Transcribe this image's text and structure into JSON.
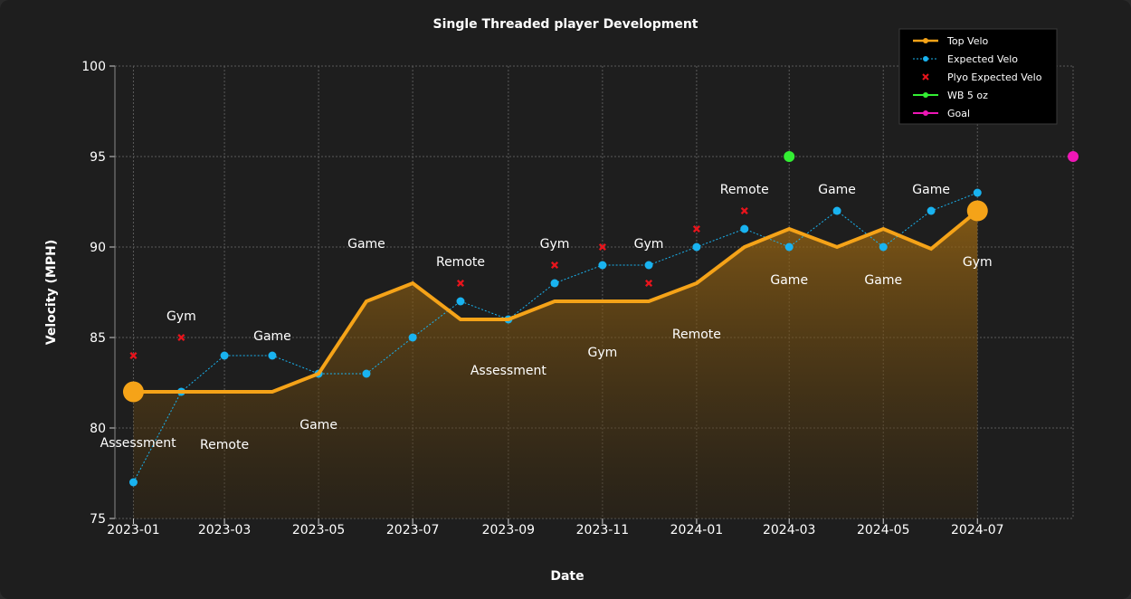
{
  "chart_data": {
    "type": "line",
    "title": "Single Threaded player Development",
    "xlabel": "Date",
    "ylabel": "Velocity (MPH)",
    "ylim": [
      75,
      100
    ],
    "xlim": [
      "2022-12-20",
      "2024-09-01"
    ],
    "y_ticks": [
      75,
      80,
      85,
      90,
      95,
      100
    ],
    "x_ticks": [
      {
        "date": "2023-01-01",
        "label": "2023-01"
      },
      {
        "date": "2023-03-01",
        "label": "2023-03"
      },
      {
        "date": "2023-05-01",
        "label": "2023-05"
      },
      {
        "date": "2023-07-01",
        "label": "2023-07"
      },
      {
        "date": "2023-09-01",
        "label": "2023-09"
      },
      {
        "date": "2023-11-01",
        "label": "2023-11"
      },
      {
        "date": "2024-01-01",
        "label": "2024-01"
      },
      {
        "date": "2024-03-01",
        "label": "2024-03"
      },
      {
        "date": "2024-05-01",
        "label": "2024-05"
      },
      {
        "date": "2024-07-01",
        "label": "2024-07"
      }
    ],
    "grid": true,
    "legend_position": "top-right",
    "series": [
      {
        "name": "Top Velo",
        "style": "line-filled",
        "color": "#f5a318",
        "points": [
          [
            "2023-01-01",
            82
          ],
          [
            "2023-02-01",
            82
          ],
          [
            "2023-03-01",
            82
          ],
          [
            "2023-04-01",
            82
          ],
          [
            "2023-05-01",
            83
          ],
          [
            "2023-06-01",
            87
          ],
          [
            "2023-07-01",
            88
          ],
          [
            "2023-08-01",
            86
          ],
          [
            "2023-09-01",
            86
          ],
          [
            "2023-10-01",
            87
          ],
          [
            "2023-11-01",
            87
          ],
          [
            "2023-12-01",
            87
          ],
          [
            "2024-01-01",
            88
          ],
          [
            "2024-02-01",
            90
          ],
          [
            "2024-03-01",
            91
          ],
          [
            "2024-04-01",
            90
          ],
          [
            "2024-05-01",
            91
          ],
          [
            "2024-06-01",
            89.9
          ],
          [
            "2024-07-01",
            92
          ]
        ],
        "highlight": [
          [
            "2023-01-01",
            82
          ],
          [
            "2024-07-01",
            92
          ]
        ]
      },
      {
        "name": "Expected Velo",
        "style": "dotted-markers",
        "color": "#19b3f0",
        "points": [
          [
            "2023-01-01",
            77
          ],
          [
            "2023-02-01",
            82
          ],
          [
            "2023-03-01",
            84
          ],
          [
            "2023-04-01",
            84
          ],
          [
            "2023-05-01",
            83
          ],
          [
            "2023-06-01",
            83
          ],
          [
            "2023-07-01",
            85
          ],
          [
            "2023-08-01",
            87
          ],
          [
            "2023-09-01",
            86
          ],
          [
            "2023-10-01",
            88
          ],
          [
            "2023-11-01",
            89
          ],
          [
            "2023-12-01",
            89
          ],
          [
            "2024-01-01",
            90
          ],
          [
            "2024-02-01",
            91
          ],
          [
            "2024-03-01",
            90
          ],
          [
            "2024-04-01",
            92
          ],
          [
            "2024-05-01",
            90
          ],
          [
            "2024-06-01",
            92
          ],
          [
            "2024-07-01",
            93
          ]
        ]
      },
      {
        "name": "Plyo Expected Velo",
        "style": "x-markers",
        "color": "#e8141c",
        "points": [
          [
            "2023-01-01",
            84
          ],
          [
            "2023-02-01",
            85
          ],
          [
            "2023-08-01",
            88
          ],
          [
            "2023-10-01",
            89
          ],
          [
            "2023-11-01",
            90
          ],
          [
            "2023-12-01",
            88
          ],
          [
            "2024-01-01",
            91
          ],
          [
            "2024-02-01",
            92
          ]
        ]
      },
      {
        "name": "WB 5 oz",
        "style": "marker",
        "color": "#33ee33",
        "points": [
          [
            "2024-03-01",
            95
          ]
        ]
      },
      {
        "name": "Goal",
        "style": "marker",
        "color": "#ee17b6",
        "points": [
          [
            "2024-09-01",
            95
          ]
        ]
      }
    ],
    "annotations": [
      {
        "text": "Assessment",
        "date": "2023-01-04",
        "y": 79.2
      },
      {
        "text": "Gym",
        "date": "2023-02-01",
        "y": 86.2
      },
      {
        "text": "Remote",
        "date": "2023-03-01",
        "y": 79.1
      },
      {
        "text": "Game",
        "date": "2023-04-01",
        "y": 85.1
      },
      {
        "text": "Game",
        "date": "2023-05-01",
        "y": 80.2
      },
      {
        "text": "Game",
        "date": "2023-06-01",
        "y": 90.2
      },
      {
        "text": "Remote",
        "date": "2023-08-01",
        "y": 89.2
      },
      {
        "text": "Assessment",
        "date": "2023-09-01",
        "y": 83.2
      },
      {
        "text": "Gym",
        "date": "2023-10-01",
        "y": 90.2
      },
      {
        "text": "Gym",
        "date": "2023-11-01",
        "y": 84.2
      },
      {
        "text": "Gym",
        "date": "2023-12-01",
        "y": 90.2
      },
      {
        "text": "Remote",
        "date": "2024-01-01",
        "y": 85.2
      },
      {
        "text": "Remote",
        "date": "2024-02-01",
        "y": 93.2
      },
      {
        "text": "Game",
        "date": "2024-03-01",
        "y": 88.2
      },
      {
        "text": "Game",
        "date": "2024-04-01",
        "y": 93.2
      },
      {
        "text": "Game",
        "date": "2024-05-01",
        "y": 88.2
      },
      {
        "text": "Game",
        "date": "2024-06-01",
        "y": 93.2
      },
      {
        "text": "Gym",
        "date": "2024-07-01",
        "y": 89.2
      }
    ]
  }
}
